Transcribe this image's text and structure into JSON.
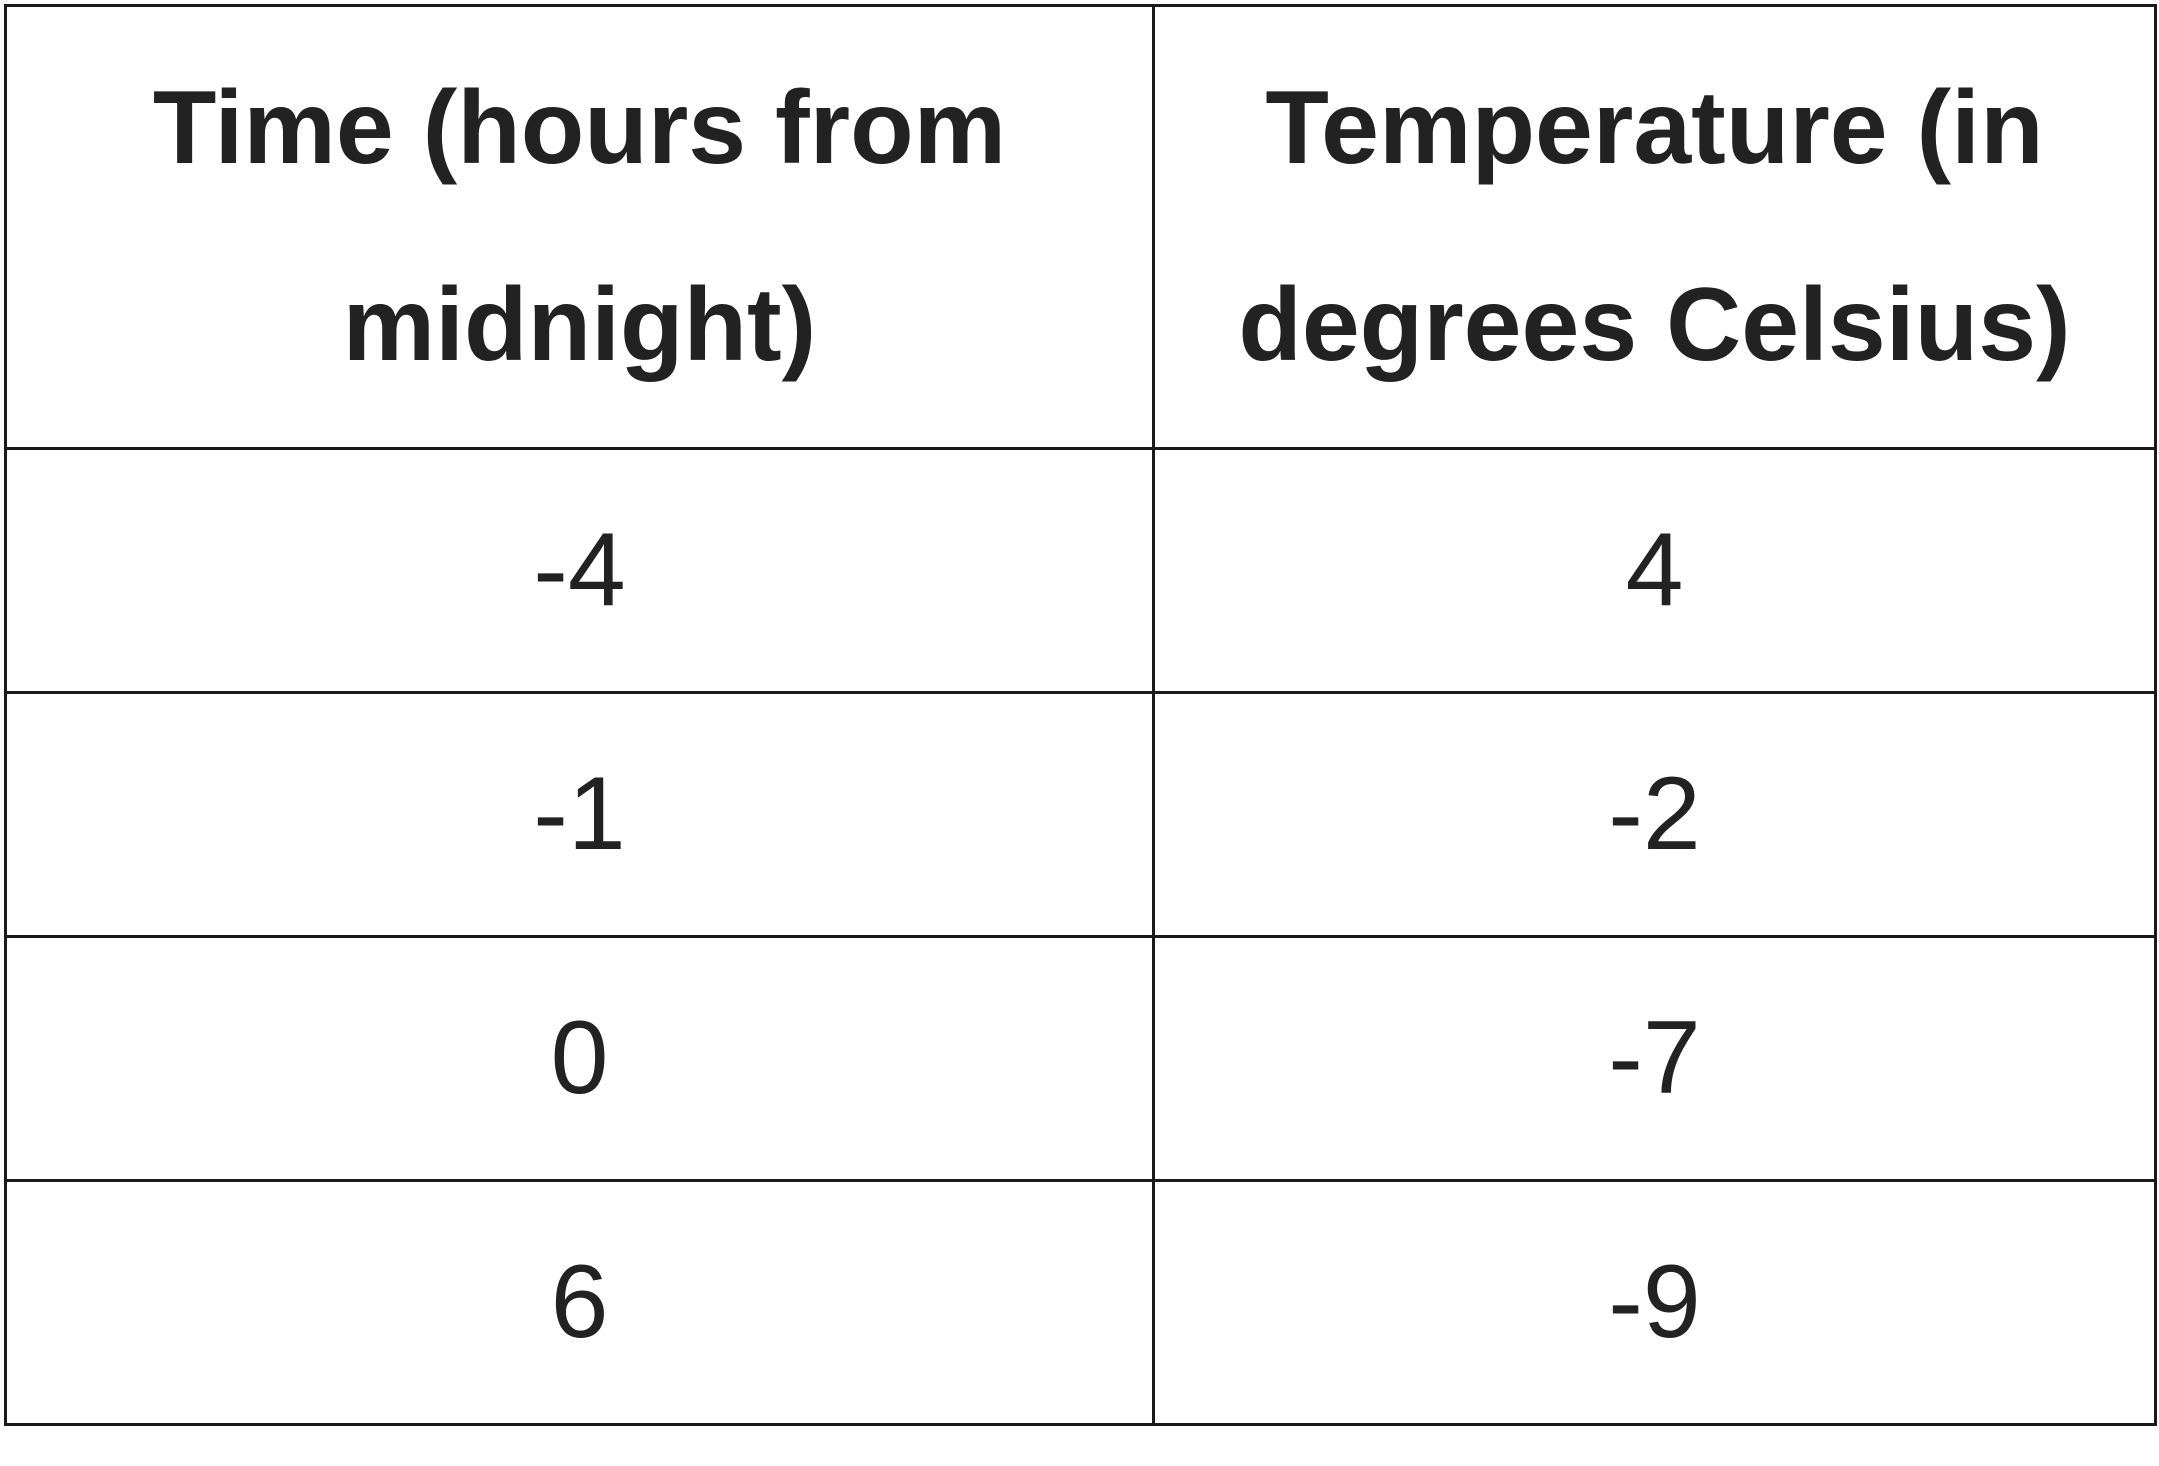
{
  "table": {
    "headers": [
      "Time (hours from midnight)",
      "Temperature (in degrees Celsius)"
    ],
    "rows": [
      [
        "-4",
        "4"
      ],
      [
        "-1",
        "-2"
      ],
      [
        "0",
        "-7"
      ],
      [
        "6",
        "-9"
      ]
    ]
  }
}
